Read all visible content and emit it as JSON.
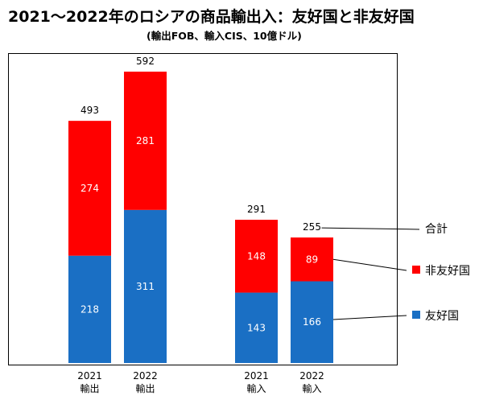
{
  "title": "2021～2022年のロシアの商品輸出入：友好国と非友好国",
  "subtitle": "(輸出FOB、輸入CIS、10億ドル)",
  "colors": {
    "friendly": "#1a6fc4",
    "unfriendly": "#ff0000"
  },
  "chart_data": {
    "type": "bar",
    "stacked": true,
    "categories": [
      {
        "year": "2021",
        "kind": "輸出"
      },
      {
        "year": "2022",
        "kind": "輸出"
      },
      {
        "year": "2021",
        "kind": "輸入"
      },
      {
        "year": "2022",
        "kind": "輸入"
      }
    ],
    "series": [
      {
        "name": "友好国",
        "values": [
          218,
          311,
          143,
          166
        ]
      },
      {
        "name": "非友好国",
        "values": [
          274,
          281,
          148,
          89
        ]
      }
    ],
    "totals": [
      493,
      592,
      291,
      255
    ],
    "total_legend": "合計",
    "legend_placement": "right",
    "grid": false
  }
}
